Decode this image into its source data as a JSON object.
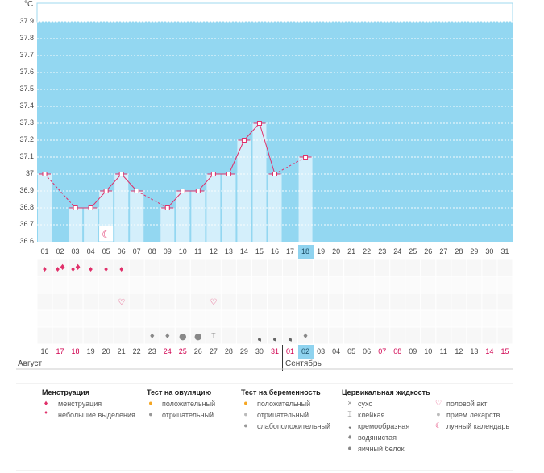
{
  "chart_data": {
    "type": "bar",
    "unit": "°C",
    "ylim": [
      36.6,
      37.9
    ],
    "y_ticks": [
      "37.9",
      "37.8",
      "37.7",
      "37.6",
      "37.5",
      "37.4",
      "37.3",
      "37.2",
      "37.1",
      "37",
      "36.9",
      "36.8",
      "36.7",
      "36.6"
    ],
    "y_tick_values": [
      37.9,
      37.8,
      37.7,
      37.6,
      37.5,
      37.4,
      37.3,
      37.2,
      37.1,
      37.0,
      36.9,
      36.8,
      36.7,
      36.6
    ],
    "days_top": [
      "01",
      "02",
      "03",
      "04",
      "05",
      "06",
      "07",
      "08",
      "09",
      "10",
      "11",
      "12",
      "13",
      "14",
      "15",
      "16",
      "17",
      "18",
      "19",
      "20",
      "21",
      "22",
      "23",
      "24",
      "25",
      "26",
      "27",
      "28",
      "29",
      "30",
      "31"
    ],
    "days_bottom": [
      "16",
      "17",
      "18",
      "19",
      "20",
      "21",
      "22",
      "23",
      "24",
      "25",
      "26",
      "27",
      "28",
      "29",
      "30",
      "31",
      "01",
      "02",
      "03",
      "04",
      "05",
      "06",
      "07",
      "08",
      "09",
      "10",
      "11",
      "12",
      "13",
      "14",
      "15"
    ],
    "red_bottom_indices": [
      1,
      2,
      8,
      9,
      15,
      16,
      22,
      23,
      29,
      30
    ],
    "selected_index": 17,
    "values": [
      37.0,
      null,
      36.8,
      36.8,
      36.9,
      37.0,
      36.9,
      null,
      36.8,
      36.9,
      36.9,
      37.0,
      37.0,
      37.2,
      37.3,
      37.0,
      null,
      37.1,
      null,
      null,
      null,
      null,
      null,
      null,
      null,
      null,
      null,
      null,
      null,
      null,
      null
    ],
    "month_left": "Август",
    "month_right": "Сентябрь",
    "colors": {
      "plot_bg": "#93d7f1",
      "bar": "#d4effb",
      "line": "#e0306a",
      "grid": "#ffffff",
      "selected": "#8fd3ef"
    },
    "markers": {
      "menstruation": [
        0,
        1,
        2,
        3,
        4,
        5
      ],
      "heavy": [
        1,
        2
      ],
      "intercourse": [
        5,
        11
      ],
      "fluid_creamy": [
        14,
        15,
        16
      ],
      "fluid_watery": [
        7,
        8,
        17
      ],
      "fluid_eggwhite": [
        9,
        10
      ],
      "fluid_sticky": [
        11
      ],
      "moon": [
        4
      ]
    }
  },
  "legend": {
    "menstruation": {
      "title": "Менструация",
      "items": [
        "менструация",
        "небольшие выделения"
      ]
    },
    "ovulation": {
      "title": "Тест на овуляцию",
      "items": [
        "положительный",
        "отрицательный"
      ]
    },
    "pregnancy": {
      "title": "Тест на беременность",
      "items": [
        "положительный",
        "отрицательный",
        "слабоположительный"
      ]
    },
    "fluid": {
      "title": "Цервикальная жидкость",
      "items": [
        "сухо",
        "клейкая",
        "кремообразная",
        "водянистая",
        "яичный белок"
      ]
    },
    "other": {
      "items": [
        "половой акт",
        "прием лекарств",
        "лунный календарь"
      ]
    }
  }
}
